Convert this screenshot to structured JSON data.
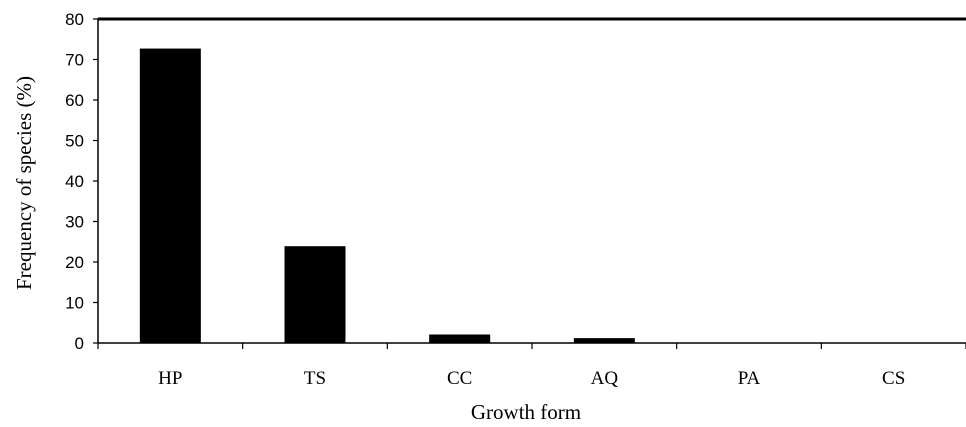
{
  "chart_data": {
    "type": "bar",
    "title": "",
    "xlabel": "Growth form",
    "ylabel": "Frequency of species (%)",
    "categories": [
      "HP",
      "TS",
      "CC",
      "AQ",
      "PA",
      "CS"
    ],
    "values": [
      72.7,
      23.9,
      2.1,
      1.2,
      0,
      0
    ],
    "ylim": [
      0,
      80
    ],
    "yticks": [
      "0",
      "10",
      "20",
      "30",
      "40",
      "50",
      "60",
      "70",
      "80"
    ],
    "bar_color": "#000000",
    "grid": false,
    "legend": "none"
  }
}
